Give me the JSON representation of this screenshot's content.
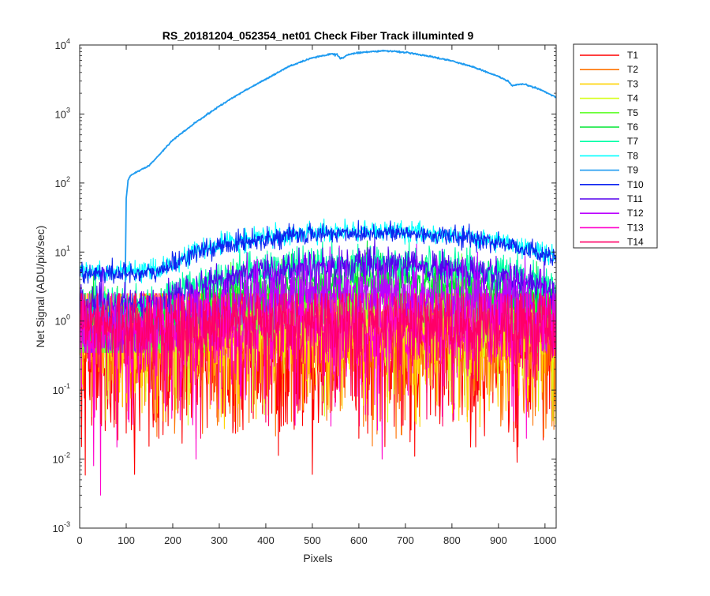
{
  "chart_data": {
    "type": "line",
    "title": "RS_20181204_052354_net01   Check Fiber     Track illuminted 9",
    "xlabel": "Pixels",
    "ylabel": "Net Signal (ADU/pix/sec)",
    "xlim": [
      0,
      1024
    ],
    "ylim": [
      0.001,
      10000
    ],
    "yscale": "log",
    "xticks": [
      0,
      100,
      200,
      300,
      400,
      500,
      600,
      700,
      800,
      900,
      1000
    ],
    "yticks": [
      0.001,
      0.01,
      0.1,
      1,
      10,
      100,
      1000,
      10000
    ],
    "ytick_labels": [
      {
        "base": "10",
        "exp": "-3"
      },
      {
        "base": "10",
        "exp": "-2"
      },
      {
        "base": "10",
        "exp": "-1"
      },
      {
        "base": "10",
        "exp": "0"
      },
      {
        "base": "10",
        "exp": "1"
      },
      {
        "base": "10",
        "exp": "2"
      },
      {
        "base": "10",
        "exp": "3"
      },
      {
        "base": "10",
        "exp": "4"
      }
    ],
    "grid": false,
    "legend_position": "outside-top-right",
    "series": [
      {
        "name": "T1",
        "color": "#ff0000",
        "center": 0.45,
        "noise": 1.0,
        "dips": [
          [
            118,
            0.006
          ],
          [
            500,
            0.006
          ],
          [
            720,
            0.011
          ],
          [
            940,
            0.009
          ],
          [
            170,
            0.02
          ],
          [
            330,
            0.03
          ],
          [
            430,
            0.025
          ],
          [
            600,
            0.02
          ],
          [
            840,
            0.015
          ],
          [
            240,
            0.04
          ],
          [
            650,
            0.03
          ]
        ]
      },
      {
        "name": "T2",
        "color": "#ff7300",
        "center": 0.6,
        "noise": 0.85,
        "dips": [
          [
            340,
            0.025
          ],
          [
            680,
            0.02
          ],
          [
            1015,
            0.03
          ],
          [
            455,
            0.035
          ],
          [
            905,
            0.03
          ],
          [
            140,
            0.06
          ],
          [
            560,
            0.05
          ]
        ]
      },
      {
        "name": "T3",
        "color": "#ffd300",
        "center": 0.75,
        "noise": 0.7,
        "dips": [
          [
            210,
            0.05
          ],
          [
            610,
            0.06
          ],
          [
            880,
            0.05
          ],
          [
            60,
            0.1
          ]
        ]
      },
      {
        "name": "T4",
        "color": "#d7ff1e",
        "center": 0.95,
        "noise": 0.45,
        "dips": []
      },
      {
        "name": "T5",
        "color": "#66ff33",
        "center": 2.0,
        "noise": 0.25,
        "dips": []
      },
      {
        "name": "T6",
        "color": "#00e533",
        "center": 3.7,
        "noise": 0.18,
        "dips": []
      },
      {
        "name": "T7",
        "color": "#00ffa6",
        "center": 7.0,
        "noise": 0.12,
        "dips": []
      },
      {
        "name": "T8",
        "color": "#00ffff",
        "center": 20.0,
        "noise": 0.07,
        "dips": []
      },
      {
        "name": "T9",
        "color": "#1f9bf0",
        "center": 8000,
        "noise": 0.02,
        "dips": []
      },
      {
        "name": "T10",
        "color": "#0d24f0",
        "center": 19.0,
        "noise": 0.07,
        "dips": []
      },
      {
        "name": "T11",
        "color": "#5500ee",
        "center": 6.3,
        "noise": 0.12,
        "dips": []
      },
      {
        "name": "T12",
        "color": "#bb00ff",
        "center": 2.6,
        "noise": 0.25,
        "dips": []
      },
      {
        "name": "T13",
        "color": "#ff00cc",
        "center": 0.8,
        "noise": 0.6,
        "dips": [
          [
            45,
            0.003
          ],
          [
            30,
            0.008
          ],
          [
            650,
            0.01
          ],
          [
            250,
            0.01
          ],
          [
            80,
            0.015
          ],
          [
            960,
            0.02
          ],
          [
            540,
            0.03
          ]
        ]
      },
      {
        "name": "T14",
        "color": "#ff0066",
        "center": 0.9,
        "noise": 0.55,
        "dips": [
          [
            260,
            0.02
          ],
          [
            780,
            0.03
          ],
          [
            470,
            0.05
          ]
        ]
      }
    ],
    "t9_profile": [
      [
        0,
        1.3
      ],
      [
        96,
        1.3
      ],
      [
        98,
        4
      ],
      [
        100,
        60
      ],
      [
        104,
        110
      ],
      [
        110,
        130
      ],
      [
        150,
        180
      ],
      [
        200,
        420
      ],
      [
        250,
        760
      ],
      [
        300,
        1300
      ],
      [
        350,
        2100
      ],
      [
        400,
        3200
      ],
      [
        450,
        4900
      ],
      [
        500,
        6500
      ],
      [
        540,
        7400
      ],
      [
        553,
        7300
      ],
      [
        560,
        6400
      ],
      [
        567,
        6600
      ],
      [
        580,
        7400
      ],
      [
        620,
        8000
      ],
      [
        650,
        8200
      ],
      [
        680,
        8100
      ],
      [
        700,
        7800
      ],
      [
        750,
        6900
      ],
      [
        800,
        5900
      ],
      [
        850,
        4700
      ],
      [
        900,
        3500
      ],
      [
        920,
        3000
      ],
      [
        930,
        2550
      ],
      [
        940,
        2650
      ],
      [
        955,
        2700
      ],
      [
        980,
        2400
      ],
      [
        1000,
        2100
      ],
      [
        1024,
        1750
      ]
    ]
  }
}
